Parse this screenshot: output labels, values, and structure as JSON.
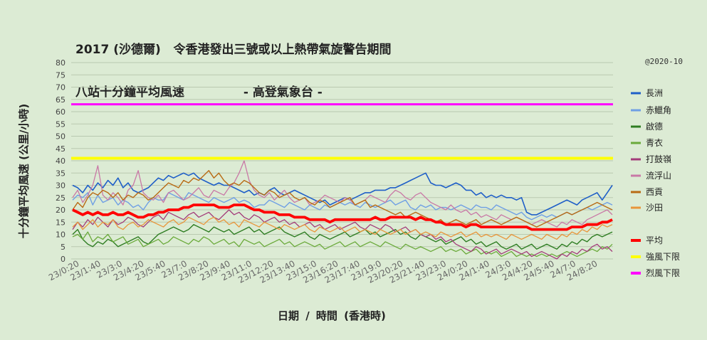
{
  "title_line1": "2017 (沙德爾)   令香港發出三號或以上熱帶氣旋警告期間",
  "title_line2": "八站十分鐘平均風速              - 高登氣象台 -",
  "credit": "@2020-10",
  "chart_data": {
    "type": "line",
    "xlabel": "日期 / 時間 (香港時)",
    "ylabel": "十分鐘平均風速 (公里/小時)",
    "ylim": [
      0,
      80
    ],
    "yticks": [
      0,
      5,
      10,
      15,
      20,
      25,
      30,
      35,
      40,
      45,
      50,
      55,
      60,
      65,
      70,
      75,
      80
    ],
    "grid": true,
    "legend_position": "right",
    "x_tick_labels": [
      "23/0:20",
      "23/1:40",
      "23/3:0",
      "23/4:20",
      "23/5:40",
      "23/7:0",
      "23/8:20",
      "23/9:40",
      "23/11:0",
      "23/12:20",
      "23/13:40",
      "23/15:0",
      "23/16:20",
      "23/17:40",
      "23/19:0",
      "23/20:20",
      "23/21:40",
      "23/23:0",
      "24/0:20",
      "24/1:40",
      "24/3:0",
      "24/4:20",
      "24/5:40",
      "24/7:0",
      "24/8:20"
    ],
    "series": [
      {
        "name": "長洲",
        "color": "#1f5fc8",
        "width": 1.6,
        "values": [
          30,
          29,
          27,
          30,
          28,
          31,
          29,
          32,
          30,
          33,
          29,
          31,
          28,
          27,
          28,
          29,
          31,
          33,
          32,
          34,
          33,
          34,
          35,
          34,
          35,
          33,
          32,
          31,
          30,
          31,
          30,
          30,
          29,
          28,
          27,
          28,
          26,
          27,
          26,
          28,
          29,
          27,
          26,
          27,
          28,
          27,
          26,
          25,
          24,
          23,
          24,
          22,
          23,
          24,
          25,
          24,
          25,
          26,
          27,
          27,
          28,
          28,
          28,
          29,
          29,
          30,
          31,
          32,
          33,
          34,
          35,
          31,
          30,
          30,
          29,
          30,
          31,
          30,
          28,
          28,
          26,
          27,
          25,
          26,
          25,
          26,
          25,
          25,
          24,
          25,
          19,
          18,
          18,
          19,
          20,
          21,
          22,
          23,
          24,
          23,
          22,
          24,
          25,
          26,
          27,
          24,
          27,
          30
        ]
      },
      {
        "name": "赤鱲角",
        "color": "#6f9fe4",
        "width": 1.4,
        "values": [
          24,
          26,
          25,
          27,
          22,
          26,
          23,
          24,
          25,
          22,
          24,
          23,
          21,
          22,
          20,
          23,
          25,
          24,
          24,
          27,
          26,
          25,
          24,
          27,
          26,
          25,
          24,
          23,
          25,
          24,
          23,
          24,
          25,
          23,
          24,
          23,
          21,
          22,
          22,
          24,
          23,
          22,
          21,
          23,
          22,
          21,
          20,
          22,
          21,
          20,
          22,
          21,
          22,
          23,
          22,
          23,
          22,
          21,
          23,
          22,
          21,
          22,
          23,
          24,
          22,
          23,
          24,
          21,
          20,
          22,
          21,
          22,
          20,
          21,
          21,
          20,
          21,
          22,
          21,
          20,
          22,
          21,
          21,
          20,
          22,
          21,
          20,
          19,
          18,
          19,
          17,
          16,
          17,
          18,
          17,
          18,
          17,
          18,
          19,
          18,
          19,
          20,
          21,
          20,
          21,
          22,
          23,
          22
        ]
      },
      {
        "name": "啟德",
        "color": "#2e7d22",
        "width": 1.4,
        "values": [
          10,
          12,
          8,
          6,
          5,
          7,
          6,
          8,
          7,
          5,
          6,
          7,
          8,
          9,
          7,
          6,
          8,
          10,
          11,
          12,
          13,
          12,
          11,
          12,
          14,
          13,
          12,
          11,
          13,
          12,
          11,
          12,
          10,
          11,
          12,
          13,
          11,
          12,
          10,
          11,
          12,
          13,
          11,
          10,
          9,
          10,
          11,
          9,
          8,
          10,
          9,
          8,
          9,
          10,
          11,
          9,
          10,
          11,
          12,
          10,
          11,
          9,
          10,
          11,
          12,
          10,
          11,
          9,
          8,
          10,
          9,
          8,
          7,
          8,
          6,
          7,
          8,
          9,
          7,
          8,
          6,
          7,
          5,
          6,
          7,
          5,
          4,
          5,
          6,
          4,
          5,
          6,
          4,
          5,
          6,
          5,
          4,
          6,
          5,
          7,
          6,
          8,
          7,
          9,
          10,
          9,
          10,
          11
        ]
      },
      {
        "name": "青衣",
        "color": "#6aaa3a",
        "width": 1.3,
        "values": [
          9,
          10,
          8,
          11,
          7,
          9,
          8,
          10,
          7,
          8,
          9,
          6,
          7,
          8,
          5,
          6,
          7,
          8,
          6,
          7,
          9,
          8,
          7,
          6,
          8,
          7,
          9,
          8,
          6,
          7,
          8,
          6,
          7,
          5,
          8,
          7,
          6,
          7,
          5,
          6,
          7,
          8,
          6,
          7,
          5,
          6,
          7,
          6,
          5,
          6,
          4,
          5,
          6,
          7,
          5,
          6,
          7,
          5,
          6,
          7,
          6,
          5,
          7,
          6,
          5,
          4,
          6,
          5,
          4,
          5,
          4,
          3,
          4,
          5,
          3,
          4,
          3,
          4,
          2,
          3,
          4,
          2,
          3,
          2,
          3,
          1,
          2,
          3,
          1,
          2,
          1,
          2,
          1,
          2,
          1,
          2,
          1,
          2,
          3,
          2,
          1,
          2,
          3,
          4,
          3,
          5,
          4,
          6
        ]
      },
      {
        "name": "打鼓嶺",
        "color": "#a33c7a",
        "width": 1.3,
        "values": [
          12,
          15,
          13,
          16,
          14,
          17,
          15,
          13,
          16,
          14,
          15,
          17,
          16,
          14,
          13,
          15,
          17,
          18,
          16,
          19,
          18,
          17,
          16,
          18,
          19,
          17,
          18,
          19,
          17,
          16,
          18,
          20,
          18,
          19,
          17,
          16,
          18,
          17,
          15,
          16,
          17,
          15,
          16,
          14,
          15,
          13,
          14,
          15,
          13,
          14,
          12,
          13,
          14,
          12,
          13,
          14,
          15,
          13,
          12,
          14,
          13,
          12,
          14,
          13,
          11,
          12,
          13,
          11,
          12,
          10,
          9,
          10,
          8,
          9,
          7,
          8,
          6,
          5,
          4,
          3,
          5,
          4,
          2,
          3,
          4,
          2,
          3,
          4,
          3,
          2,
          3,
          1,
          2,
          3,
          2,
          1,
          0,
          2,
          1,
          3,
          2,
          4,
          3,
          5,
          6,
          4,
          5,
          3
        ]
      },
      {
        "name": "流浮山",
        "color": "#c978a6",
        "width": 1.3,
        "values": [
          25,
          28,
          23,
          26,
          30,
          38,
          26,
          24,
          27,
          25,
          22,
          28,
          30,
          36,
          27,
          25,
          24,
          26,
          23,
          27,
          28,
          26,
          24,
          25,
          27,
          29,
          26,
          25,
          28,
          27,
          26,
          29,
          31,
          35,
          40,
          32,
          28,
          26,
          25,
          27,
          24,
          26,
          28,
          25,
          23,
          24,
          25,
          22,
          23,
          24,
          26,
          25,
          24,
          23,
          25,
          24,
          22,
          23,
          24,
          26,
          25,
          24,
          23,
          26,
          28,
          27,
          25,
          24,
          26,
          27,
          25,
          23,
          22,
          21,
          20,
          22,
          20,
          19,
          20,
          18,
          19,
          17,
          18,
          17,
          16,
          18,
          17,
          16,
          17,
          16,
          15,
          14,
          15,
          16,
          15,
          14,
          13,
          15,
          14,
          16,
          15,
          14,
          16,
          17,
          18,
          19,
          20,
          18
        ]
      },
      {
        "name": "西貢",
        "color": "#b86a14",
        "width": 1.4,
        "values": [
          20,
          23,
          21,
          25,
          27,
          26,
          28,
          27,
          25,
          27,
          24,
          26,
          25,
          27,
          26,
          24,
          25,
          27,
          29,
          31,
          30,
          29,
          32,
          31,
          33,
          32,
          34,
          36,
          33,
          35,
          32,
          30,
          31,
          30,
          32,
          31,
          29,
          27,
          26,
          28,
          27,
          25,
          26,
          27,
          25,
          24,
          25,
          23,
          22,
          24,
          23,
          21,
          22,
          23,
          24,
          25,
          22,
          23,
          24,
          21,
          22,
          21,
          20,
          19,
          18,
          19,
          17,
          18,
          19,
          18,
          17,
          16,
          15,
          16,
          14,
          15,
          16,
          15,
          14,
          15,
          16,
          14,
          15,
          16,
          15,
          14,
          15,
          16,
          17,
          16,
          15,
          14,
          13,
          14,
          15,
          16,
          17,
          18,
          19,
          18,
          19,
          20,
          21,
          22,
          23,
          22,
          21,
          20
        ]
      },
      {
        "name": "沙田",
        "color": "#e8953a",
        "width": 1.3,
        "values": [
          13,
          15,
          12,
          14,
          16,
          13,
          15,
          14,
          16,
          13,
          12,
          14,
          15,
          13,
          14,
          16,
          15,
          14,
          13,
          15,
          16,
          14,
          15,
          17,
          16,
          15,
          14,
          16,
          17,
          15,
          16,
          14,
          15,
          13,
          16,
          15,
          14,
          13,
          15,
          14,
          13,
          12,
          14,
          13,
          12,
          13,
          14,
          12,
          11,
          13,
          12,
          11,
          12,
          13,
          11,
          12,
          13,
          11,
          12,
          11,
          10,
          12,
          11,
          10,
          11,
          12,
          10,
          11,
          12,
          10,
          11,
          10,
          9,
          11,
          10,
          9,
          10,
          11,
          9,
          10,
          11,
          9,
          10,
          9,
          10,
          9,
          8,
          10,
          9,
          8,
          9,
          10,
          9,
          8,
          10,
          9,
          8,
          10,
          9,
          11,
          10,
          12,
          11,
          13,
          12,
          14,
          13,
          14
        ]
      },
      {
        "name": "平均",
        "color": "#ff0000",
        "width": 3.8,
        "values": [
          20,
          19,
          18,
          19,
          18,
          19,
          18,
          18,
          19,
          18,
          18,
          19,
          18,
          17,
          17,
          18,
          18,
          19,
          19,
          20,
          20,
          20,
          21,
          21,
          22,
          22,
          22,
          22,
          22,
          21,
          21,
          21,
          22,
          22,
          22,
          21,
          20,
          20,
          19,
          19,
          19,
          18,
          18,
          18,
          17,
          17,
          17,
          16,
          16,
          16,
          16,
          15,
          16,
          16,
          16,
          16,
          16,
          16,
          16,
          16,
          17,
          16,
          16,
          17,
          17,
          17,
          17,
          17,
          16,
          17,
          16,
          16,
          15,
          15,
          14,
          14,
          14,
          14,
          13,
          14,
          14,
          13,
          13,
          13,
          13,
          13,
          13,
          13,
          13,
          13,
          13,
          12,
          12,
          12,
          12,
          12,
          12,
          12,
          12,
          13,
          13,
          13,
          14,
          14,
          14,
          15,
          15,
          16
        ]
      },
      {
        "name": "強風下限",
        "color": "#ffff00",
        "width": 4,
        "constant": 41
      },
      {
        "name": "烈風下限",
        "color": "#ff00ff",
        "width": 3,
        "constant": 63
      }
    ]
  }
}
